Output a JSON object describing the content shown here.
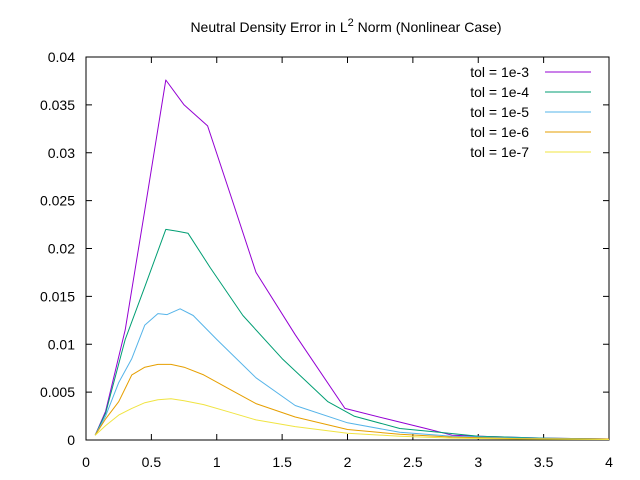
{
  "chart_data": {
    "type": "line",
    "title": {
      "before": "Neutral Density Error in L",
      "sup": "2",
      "after": " Norm (Nonlinear Case)"
    },
    "xlabel": "",
    "ylabel": "",
    "xlim": [
      0,
      4
    ],
    "ylim": [
      0,
      0.04
    ],
    "x_ticks": [
      0,
      0.5,
      1,
      1.5,
      2,
      2.5,
      3,
      3.5,
      4
    ],
    "x_tick_labels": [
      "0",
      "0.5",
      "1",
      "1.5",
      "2",
      "2.5",
      "3",
      "3.5",
      "4"
    ],
    "y_ticks": [
      0,
      0.005,
      0.01,
      0.015,
      0.02,
      0.025,
      0.03,
      0.035,
      0.04
    ],
    "y_tick_labels": [
      "0",
      "0.005",
      "0.01",
      "0.015",
      "0.02",
      "0.025",
      "0.03",
      "0.035",
      "0.04"
    ],
    "grid": false,
    "legend_position": "top-right",
    "series": [
      {
        "name": "tol = 1e-3",
        "color": "#9400d3",
        "x": [
          0.07,
          0.15,
          0.3,
          0.45,
          0.61,
          0.75,
          0.93,
          1.12,
          1.3,
          1.6,
          1.98,
          2.3,
          2.6,
          2.8,
          3.1,
          3.5,
          4.0
        ],
        "y": [
          0.0005,
          0.003,
          0.0115,
          0.024,
          0.0376,
          0.035,
          0.0328,
          0.025,
          0.0175,
          0.011,
          0.0033,
          0.0022,
          0.0012,
          0.0005,
          0.00035,
          0.0002,
          0.0001
        ]
      },
      {
        "name": "tol = 1e-4",
        "color": "#009e73",
        "x": [
          0.07,
          0.15,
          0.3,
          0.45,
          0.61,
          0.7,
          0.78,
          0.95,
          1.2,
          1.5,
          1.85,
          2.05,
          2.4,
          2.7,
          3.0,
          3.5,
          4.0
        ],
        "y": [
          0.0005,
          0.0028,
          0.0105,
          0.016,
          0.022,
          0.0218,
          0.0216,
          0.018,
          0.013,
          0.0085,
          0.004,
          0.0025,
          0.0012,
          0.0008,
          0.0004,
          0.0002,
          0.0001
        ]
      },
      {
        "name": "tol = 1e-5",
        "color": "#56b4e9",
        "x": [
          0.07,
          0.15,
          0.25,
          0.35,
          0.45,
          0.55,
          0.62,
          0.72,
          0.82,
          1.0,
          1.3,
          1.6,
          2.0,
          2.4,
          2.8,
          3.3,
          4.0
        ],
        "y": [
          0.0005,
          0.0025,
          0.006,
          0.0085,
          0.012,
          0.0132,
          0.0131,
          0.0137,
          0.013,
          0.0105,
          0.0065,
          0.0036,
          0.0018,
          0.0008,
          0.0004,
          0.0002,
          0.0001
        ]
      },
      {
        "name": "tol = 1e-6",
        "color": "#e69f00",
        "x": [
          0.07,
          0.15,
          0.25,
          0.35,
          0.45,
          0.55,
          0.65,
          0.75,
          0.9,
          1.1,
          1.3,
          1.6,
          2.0,
          2.4,
          2.8,
          3.3,
          4.0
        ],
        "y": [
          0.0005,
          0.0022,
          0.004,
          0.0068,
          0.0076,
          0.0079,
          0.0079,
          0.0076,
          0.0068,
          0.0053,
          0.0038,
          0.0024,
          0.0011,
          0.0006,
          0.0003,
          0.00015,
          0.0001
        ]
      },
      {
        "name": "tol = 1e-7",
        "color": "#f0e442",
        "x": [
          0.07,
          0.15,
          0.25,
          0.35,
          0.45,
          0.55,
          0.65,
          0.75,
          0.9,
          1.1,
          1.3,
          1.6,
          2.0,
          2.4,
          2.8,
          3.3,
          4.0
        ],
        "y": [
          0.0005,
          0.0015,
          0.0026,
          0.0033,
          0.0039,
          0.0042,
          0.0043,
          0.0041,
          0.0037,
          0.0029,
          0.0021,
          0.0014,
          0.0007,
          0.0004,
          0.0002,
          0.0001,
          5e-05
        ]
      }
    ]
  }
}
